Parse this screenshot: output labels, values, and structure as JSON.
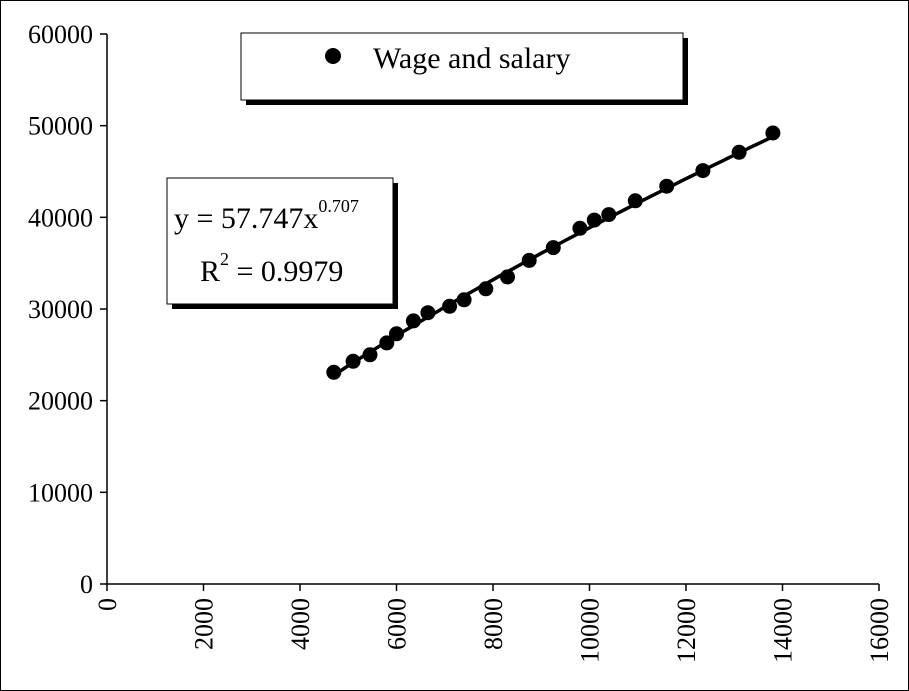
{
  "chart_data": {
    "type": "scatter",
    "xlim": [
      0,
      16000
    ],
    "ylim": [
      0,
      60000
    ],
    "x_ticks": [
      "0",
      "2000",
      "4000",
      "6000",
      "8000",
      "10000",
      "12000",
      "14000",
      "16000"
    ],
    "y_ticks": [
      "0",
      "10000",
      "20000",
      "30000",
      "40000",
      "50000",
      "60000"
    ],
    "grid": false,
    "legend_position": "top",
    "series": [
      {
        "name": "Wage and salary",
        "marker": "circle",
        "color": "#000000",
        "points": [
          [
            4700,
            23100
          ],
          [
            5100,
            24300
          ],
          [
            5450,
            25000
          ],
          [
            5800,
            26300
          ],
          [
            6000,
            27300
          ],
          [
            6350,
            28700
          ],
          [
            6650,
            29600
          ],
          [
            7100,
            30300
          ],
          [
            7400,
            31000
          ],
          [
            7850,
            32200
          ],
          [
            8300,
            33500
          ],
          [
            8750,
            35300
          ],
          [
            9250,
            36700
          ],
          [
            9800,
            38800
          ],
          [
            10100,
            39700
          ],
          [
            10400,
            40300
          ],
          [
            10950,
            41800
          ],
          [
            11600,
            43400
          ],
          [
            12350,
            45100
          ],
          [
            13100,
            47100
          ],
          [
            13800,
            49200
          ]
        ]
      }
    ],
    "trendline": {
      "type": "power",
      "coefficient": 57.747,
      "exponent": 0.707,
      "x_range": [
        4700,
        13800
      ],
      "color": "#000000",
      "equation_prefix": "y = 57.747x",
      "equation_exponent": "0.707",
      "r2_prefix": "R",
      "r2_exponent": "2",
      "r2_suffix": " = 0.9979"
    }
  }
}
